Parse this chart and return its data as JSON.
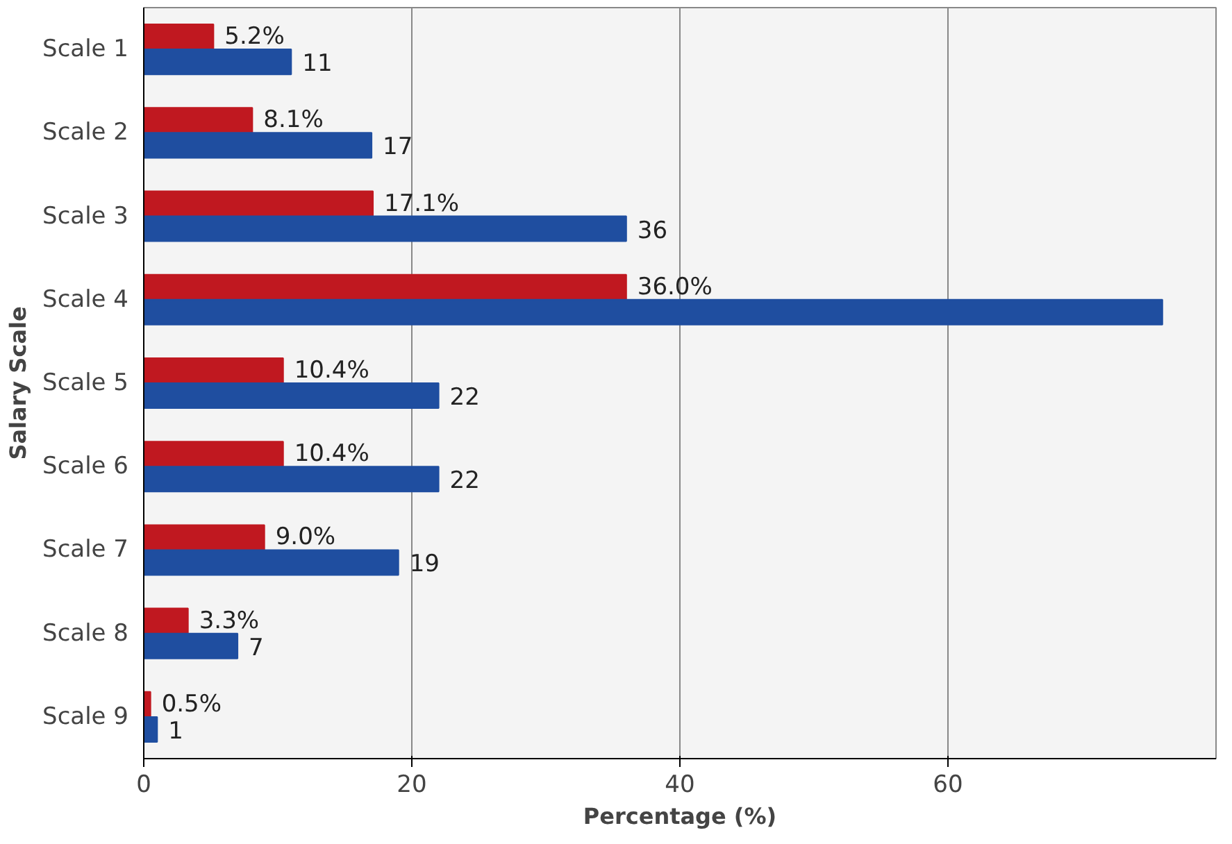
{
  "chart_data": {
    "type": "bar",
    "orientation": "horizontal",
    "xlabel": "Percentage (%)",
    "ylabel": "Salary Scale",
    "categories": [
      "Scale 1",
      "Scale 2",
      "Scale 3",
      "Scale 4",
      "Scale 5",
      "Scale 6",
      "Scale 7",
      "Scale 8",
      "Scale 9"
    ],
    "series": [
      {
        "color": "#c01820",
        "values": [
          5.2,
          8.1,
          17.1,
          36.0,
          10.4,
          10.4,
          9.0,
          3.3,
          0.5
        ],
        "value_labels": [
          "5.2%",
          "8.1%",
          "17.1%",
          "36.0%",
          "10.4%",
          "10.4%",
          "9.0%",
          "3.3%",
          "0.5%"
        ]
      },
      {
        "color": "#1f4ea0",
        "values": [
          11,
          17,
          36,
          76,
          22,
          22,
          19,
          7,
          1
        ],
        "value_labels": [
          "11",
          "17",
          "36",
          null,
          "22",
          "22",
          "19",
          "7",
          "1"
        ]
      }
    ],
    "xlim": [
      0,
      80
    ],
    "xticks": [
      0,
      20,
      40,
      60
    ],
    "grid": "x"
  }
}
